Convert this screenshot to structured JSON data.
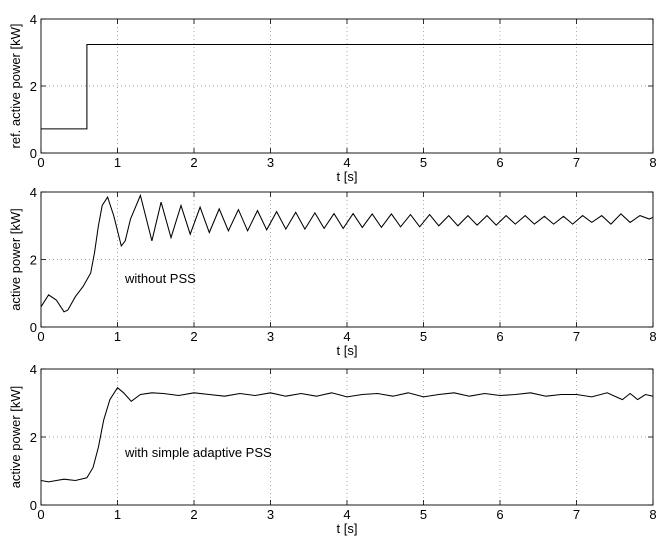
{
  "chart_data": [
    {
      "type": "line",
      "xlabel": "t [s]",
      "ylabel": "ref. active power [kW]",
      "xlim": [
        0,
        8
      ],
      "ylim": [
        0,
        4
      ],
      "xticks": [
        0,
        1,
        2,
        3,
        4,
        5,
        6,
        7,
        8
      ],
      "yticks": [
        0,
        2,
        4
      ],
      "grid": true,
      "annotation": "",
      "series": [
        {
          "x": [
            0,
            0.6,
            0.6,
            8
          ],
          "y": [
            0.72,
            0.72,
            3.24,
            3.24
          ]
        }
      ]
    },
    {
      "type": "line",
      "xlabel": "t [s]",
      "ylabel": "active power [kW]",
      "xlim": [
        0,
        8
      ],
      "ylim": [
        0,
        4
      ],
      "xticks": [
        0,
        1,
        2,
        3,
        4,
        5,
        6,
        7,
        8
      ],
      "yticks": [
        0,
        2,
        4
      ],
      "grid": true,
      "annotation": "without PSS",
      "series": [
        {
          "x": [
            0,
            0.1,
            0.2,
            0.3,
            0.35,
            0.45,
            0.55,
            0.6,
            0.65,
            0.7,
            0.75,
            0.8,
            0.87,
            0.95,
            1.05,
            1.1,
            1.17,
            1.3,
            1.45,
            1.57,
            1.7,
            1.83,
            1.95,
            2.08,
            2.2,
            2.33,
            2.45,
            2.58,
            2.7,
            2.83,
            2.95,
            3.08,
            3.2,
            3.33,
            3.45,
            3.58,
            3.7,
            3.83,
            3.95,
            4.08,
            4.2,
            4.33,
            4.45,
            4.58,
            4.7,
            4.83,
            4.95,
            5.08,
            5.2,
            5.33,
            5.45,
            5.58,
            5.7,
            5.83,
            5.95,
            6.08,
            6.2,
            6.33,
            6.45,
            6.58,
            6.7,
            6.83,
            6.95,
            7.08,
            7.2,
            7.33,
            7.45,
            7.58,
            7.7,
            7.83,
            7.95,
            8.0
          ],
          "y": [
            0.6,
            0.95,
            0.8,
            0.45,
            0.5,
            0.9,
            1.2,
            1.4,
            1.6,
            2.2,
            3.0,
            3.6,
            3.85,
            3.3,
            2.4,
            2.55,
            3.2,
            3.9,
            2.55,
            3.7,
            2.65,
            3.6,
            2.75,
            3.55,
            2.8,
            3.5,
            2.85,
            3.48,
            2.85,
            3.45,
            2.88,
            3.42,
            2.9,
            3.4,
            2.9,
            3.38,
            2.92,
            3.36,
            2.92,
            3.36,
            2.95,
            3.35,
            2.95,
            3.35,
            2.97,
            3.33,
            2.97,
            3.33,
            3.0,
            3.3,
            3.0,
            3.3,
            3.02,
            3.3,
            3.02,
            3.3,
            3.05,
            3.3,
            3.05,
            3.28,
            3.05,
            3.28,
            3.05,
            3.3,
            3.1,
            3.3,
            3.05,
            3.35,
            3.1,
            3.3,
            3.2,
            3.25
          ]
        }
      ]
    },
    {
      "type": "line",
      "xlabel": "t [s]",
      "ylabel": "active power [kW]",
      "xlim": [
        0,
        8
      ],
      "ylim": [
        0,
        4
      ],
      "xticks": [
        0,
        1,
        2,
        3,
        4,
        5,
        6,
        7,
        8
      ],
      "yticks": [
        0,
        2,
        4
      ],
      "grid": true,
      "annotation": "with simple adaptive PSS",
      "series": [
        {
          "x": [
            0,
            0.1,
            0.2,
            0.3,
            0.45,
            0.6,
            0.68,
            0.75,
            0.82,
            0.9,
            1.0,
            1.08,
            1.18,
            1.3,
            1.45,
            1.6,
            1.8,
            2.0,
            2.2,
            2.4,
            2.6,
            2.8,
            3.0,
            3.2,
            3.4,
            3.6,
            3.8,
            4.0,
            4.2,
            4.4,
            4.6,
            4.8,
            5.0,
            5.2,
            5.4,
            5.6,
            5.8,
            6.0,
            6.2,
            6.4,
            6.6,
            6.8,
            7.0,
            7.2,
            7.4,
            7.6,
            7.7,
            7.8,
            7.9,
            8.0
          ],
          "y": [
            0.72,
            0.68,
            0.72,
            0.76,
            0.72,
            0.8,
            1.1,
            1.7,
            2.5,
            3.1,
            3.45,
            3.3,
            3.05,
            3.25,
            3.3,
            3.28,
            3.22,
            3.3,
            3.25,
            3.2,
            3.28,
            3.22,
            3.3,
            3.2,
            3.28,
            3.2,
            3.3,
            3.18,
            3.25,
            3.28,
            3.2,
            3.3,
            3.18,
            3.25,
            3.3,
            3.2,
            3.28,
            3.22,
            3.25,
            3.3,
            3.2,
            3.25,
            3.25,
            3.18,
            3.3,
            3.1,
            3.28,
            3.1,
            3.25,
            3.2
          ]
        }
      ]
    }
  ]
}
